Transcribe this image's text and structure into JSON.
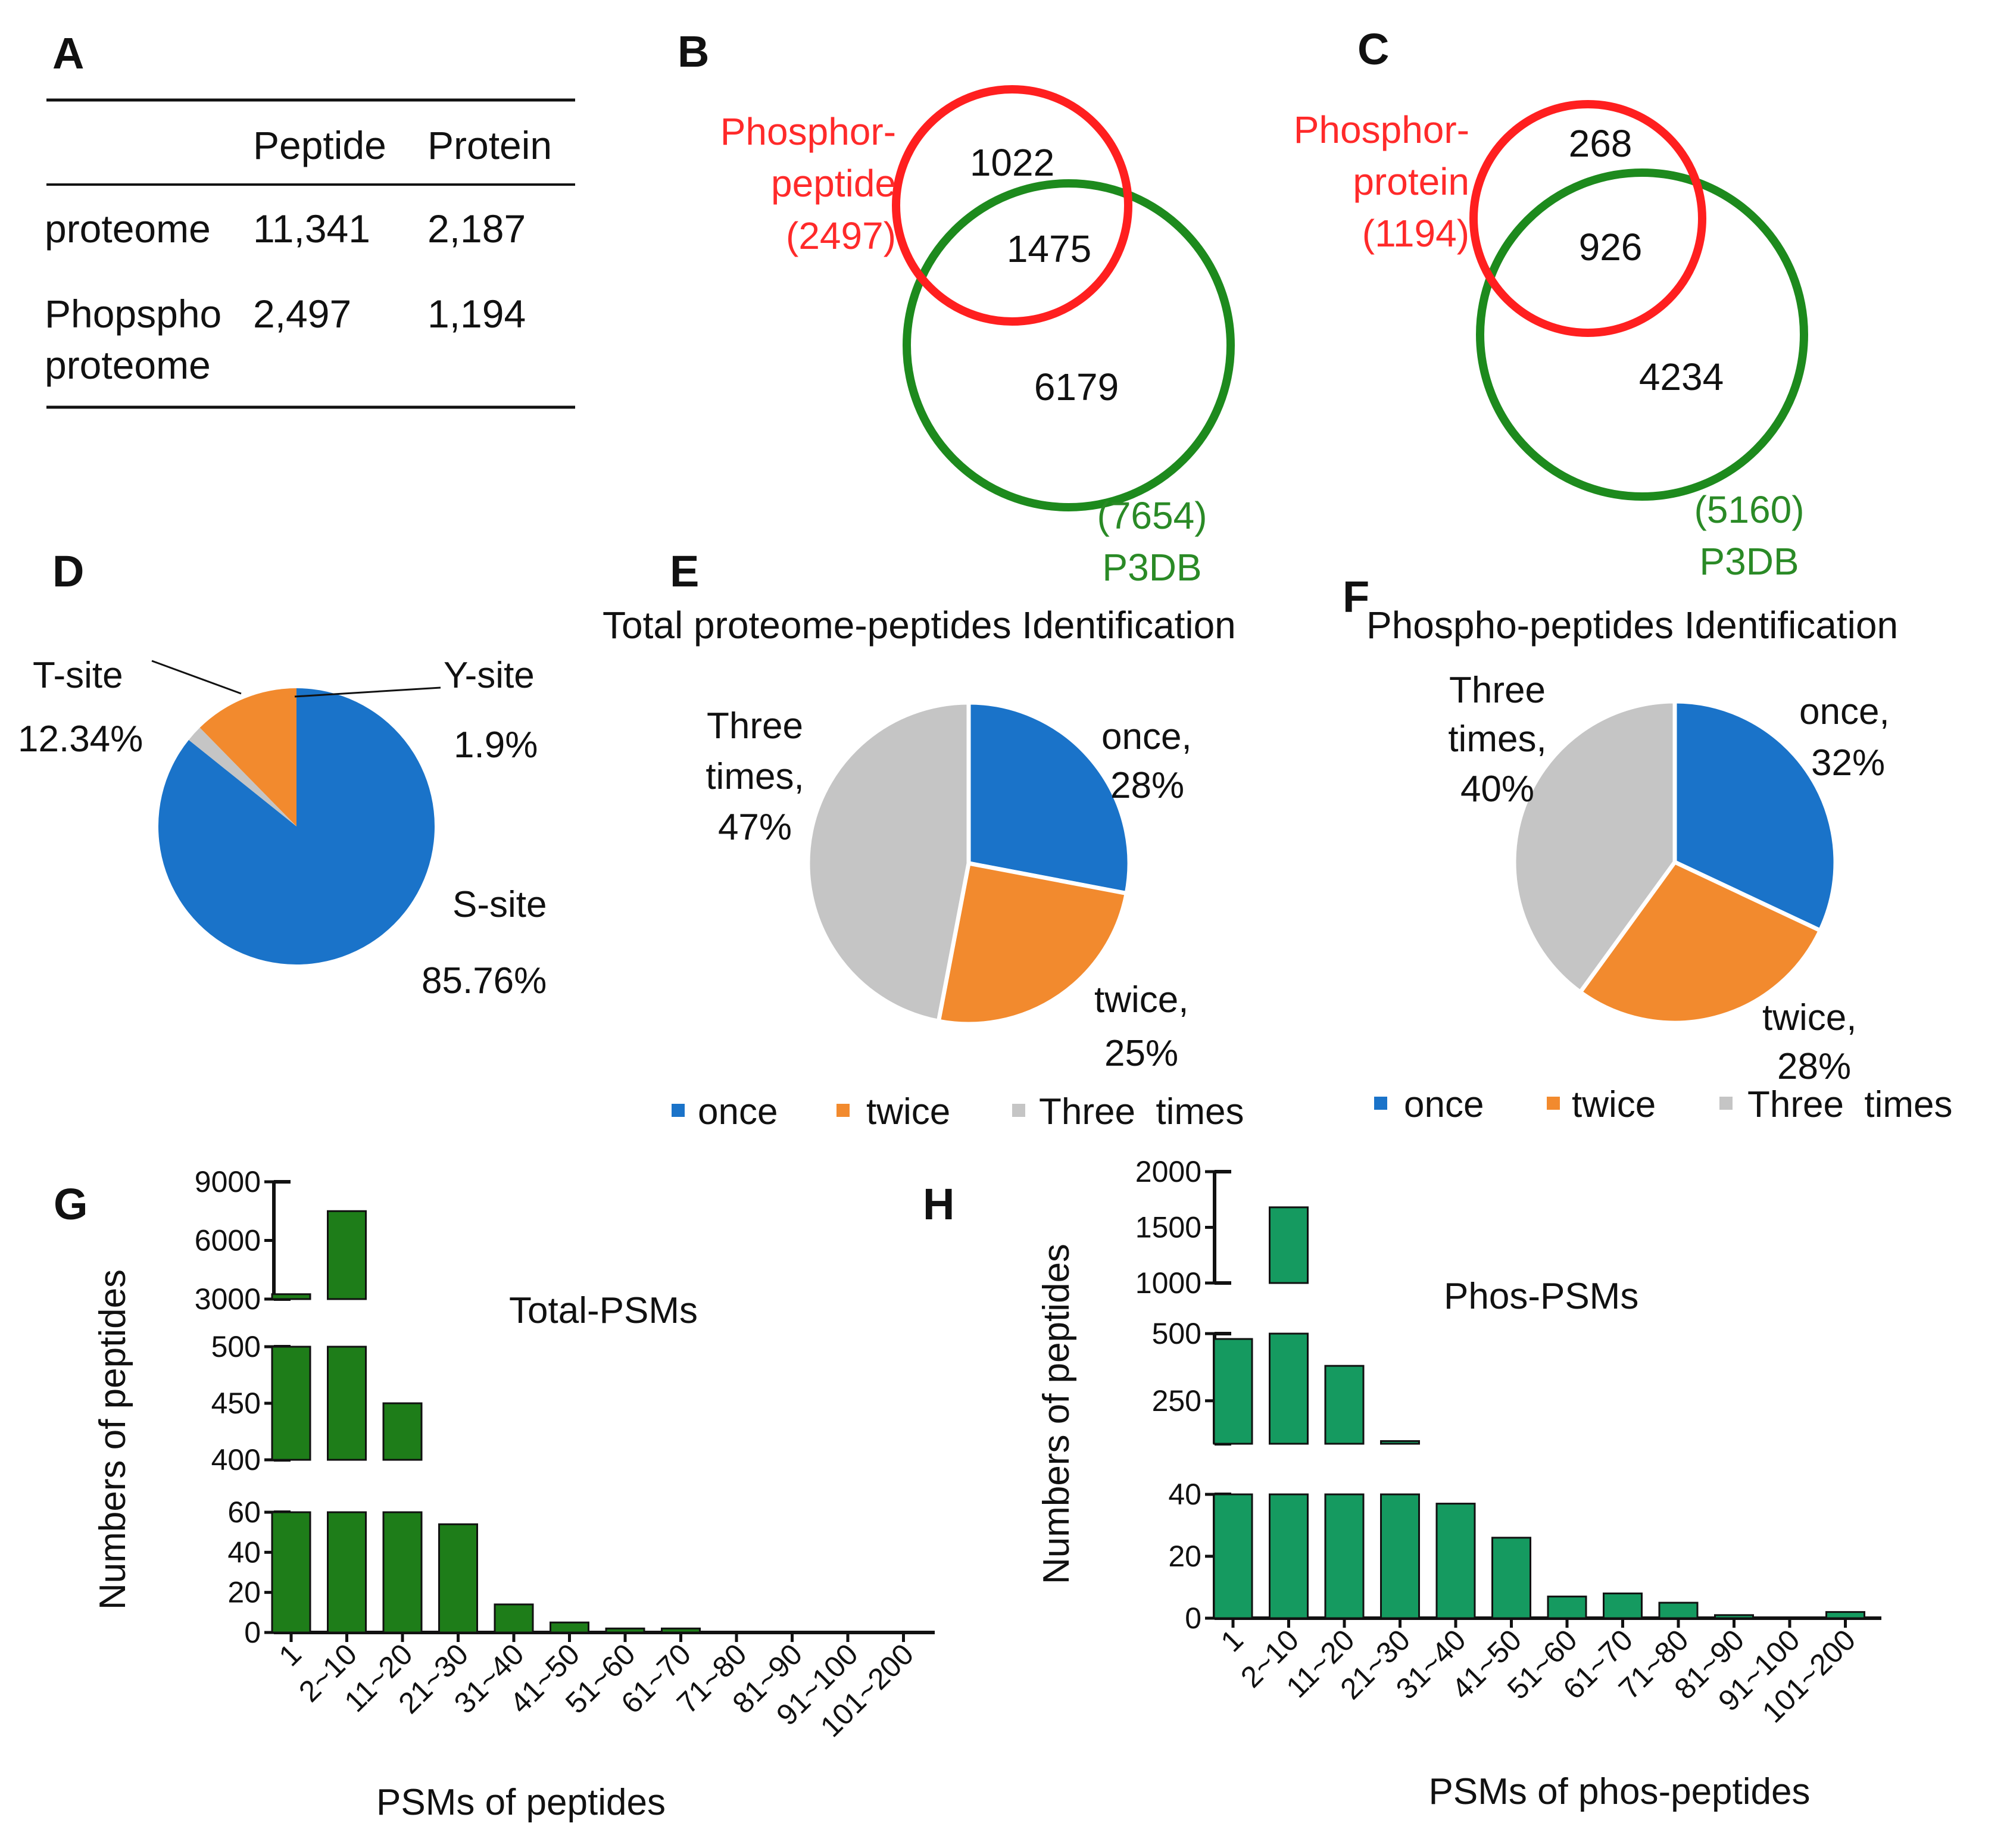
{
  "panels": {
    "A": "A",
    "B": "B",
    "C": "C",
    "D": "D",
    "E": "E",
    "F": "F",
    "G": "G",
    "H": "H"
  },
  "colors": {
    "blue": "#1a73c9",
    "orange": "#f28a2e",
    "gray": "#c5c5c5",
    "dark_green": "#1e7d19",
    "teal_green": "#159a60",
    "venn_red": "#ff2a2a",
    "venn_green": "#2a8a26"
  },
  "chart_data": [
    {
      "panel": "A",
      "type": "table",
      "columns": [
        "",
        "Peptide",
        "Protein"
      ],
      "rows": [
        {
          "name": "proteome",
          "peptide": "11,341",
          "protein": "2,187"
        },
        {
          "name_line1": "Phopspho",
          "name_line2": "proteome",
          "peptide": "2,497",
          "protein": "1,194"
        }
      ]
    },
    {
      "panel": "B",
      "type": "venn",
      "set_a": {
        "line1": "Phosphor-",
        "line2": "peptide",
        "count": "(2497)"
      },
      "set_b": {
        "count": "(7654)",
        "name": "P3DB"
      },
      "only_a": "1022",
      "both": "1475",
      "only_b": "6179"
    },
    {
      "panel": "C",
      "type": "venn",
      "set_a": {
        "line1": "Phosphor-",
        "line2": "protein",
        "count": "(1194)"
      },
      "set_b": {
        "count": "(5160)",
        "name": "P3DB"
      },
      "only_a": "268",
      "both": "926",
      "only_b": "4234"
    },
    {
      "panel": "D",
      "type": "pie",
      "slices": [
        {
          "name": "S-site",
          "value": 85.76,
          "pct": "85.76%"
        },
        {
          "name": "T-site",
          "value": 12.34,
          "pct": "12.34%"
        },
        {
          "name": "Y-site",
          "value": 1.9,
          "pct": "1.9%"
        }
      ]
    },
    {
      "panel": "E",
      "type": "pie",
      "title": "Total proteome-peptides Identification",
      "slices": [
        {
          "name": "once",
          "value": 28,
          "label1": "once,",
          "label2": "28%"
        },
        {
          "name": "twice",
          "value": 25,
          "label1": "twice,",
          "label2": "25%"
        },
        {
          "name": "Three times",
          "value": 47,
          "label1": "Three",
          "label2": "times,",
          "label3": "47%"
        }
      ],
      "legend": [
        "once",
        "twice",
        "Three  times"
      ]
    },
    {
      "panel": "F",
      "type": "pie",
      "title": "Phospho-peptides Identification",
      "slices": [
        {
          "name": "once",
          "value": 32,
          "label1": "once,",
          "label2": "32%"
        },
        {
          "name": "twice",
          "value": 28,
          "label1": "twice,",
          "label2": "28%"
        },
        {
          "name": "Three times",
          "value": 40,
          "label1": "Three",
          "label2": "times,",
          "label3": "40%"
        }
      ],
      "legend": [
        "once",
        "twice",
        "Three  times"
      ]
    },
    {
      "panel": "G",
      "type": "bar",
      "title": "Total-PSMs",
      "xlabel": "PSMs of peptides",
      "ylabel": "Numbers of peptides",
      "categories": [
        "1",
        "2~10",
        "11~20",
        "21~30",
        "31~40",
        "41~50",
        "51~60",
        "61~70",
        "71~80",
        "81~90",
        "91~100",
        "101~200"
      ],
      "values": [
        3250,
        7500,
        450,
        54,
        14,
        5,
        2,
        2,
        0,
        0,
        0,
        0
      ],
      "segments": [
        {
          "range": [
            0,
            60
          ],
          "ticks": [
            "0",
            "20",
            "40",
            "60"
          ]
        },
        {
          "range": [
            400,
            500
          ],
          "ticks": [
            "400",
            "450",
            "500"
          ]
        },
        {
          "range": [
            3000,
            9000
          ],
          "ticks": [
            "3000",
            "6000",
            "9000"
          ]
        }
      ]
    },
    {
      "panel": "H",
      "type": "bar",
      "title": "Phos-PSMs",
      "xlabel": "PSMs of phos-peptides",
      "ylabel": "Numbers of peptides",
      "categories": [
        "1",
        "2~10",
        "11~20",
        "21~30",
        "31~40",
        "41~50",
        "51~60",
        "61~70",
        "71~80",
        "81~90",
        "91~100",
        "101~200"
      ],
      "values": [
        480,
        1680,
        380,
        100,
        37,
        26,
        7,
        8,
        5,
        1,
        0,
        2
      ],
      "segments": [
        {
          "range": [
            0,
            40
          ],
          "ticks": [
            "0",
            "20",
            "40"
          ]
        },
        {
          "range": [
            90,
            500
          ],
          "ticks": [
            "250",
            "500"
          ]
        },
        {
          "range": [
            1000,
            2000
          ],
          "ticks": [
            "1000",
            "1500",
            "2000"
          ]
        }
      ]
    }
  ]
}
